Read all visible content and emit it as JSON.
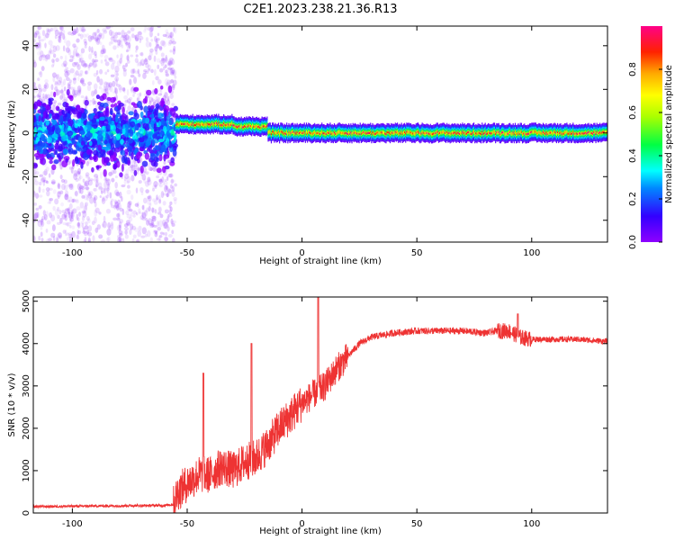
{
  "figure": {
    "title": "C2E1.2023.238.21.36.R13"
  },
  "colors": {
    "snr_line": "#ee3333",
    "axis": "#000000",
    "background": "#ffffff"
  },
  "chart_data": [
    {
      "type": "heatmap",
      "title": "",
      "xlabel": "Height of straight line (km)",
      "ylabel": "Frequency (Hz)",
      "xlim": [
        -117,
        133
      ],
      "ylim": [
        -50,
        49
      ],
      "xticks": [
        -100,
        -50,
        0,
        50,
        100
      ],
      "yticks": [
        -40,
        -20,
        0,
        20,
        40
      ],
      "colorbar": {
        "label": "Normalized spectral amplitude",
        "range": [
          0,
          1
        ],
        "ticks": [
          0.0,
          0.2,
          0.4,
          0.6,
          0.8
        ],
        "colormap": "hsv-like (purple to red)"
      },
      "features": [
        {
          "x_range": [
            -117,
            -55
          ],
          "description": "broad noisy scatter, low amplitude",
          "center_freq": 0
        },
        {
          "x_range": [
            -55,
            -30
          ],
          "center_freq": 4
        },
        {
          "x_range": [
            -30,
            -15
          ],
          "center_freq": 3
        },
        {
          "x_range": [
            -15,
            133
          ],
          "center_freq": 0
        }
      ]
    },
    {
      "type": "line",
      "title": "",
      "xlabel": "Height of straight line (km)",
      "ylabel": "SNR (10 * v/v)",
      "xlim": [
        -117,
        133
      ],
      "ylim": [
        0,
        5100
      ],
      "xticks": [
        -100,
        -50,
        0,
        50,
        100
      ],
      "yticks": [
        0,
        1000,
        2000,
        3000,
        4000,
        5000
      ],
      "series": [
        {
          "x": [
            -117,
            -100,
            -80,
            -60,
            -56,
            -54,
            -50,
            -45,
            -40,
            -35,
            -30,
            -25,
            -20,
            -15,
            -10,
            -5,
            0,
            5,
            10,
            15,
            20,
            25,
            30,
            35,
            40,
            50,
            60,
            70,
            80,
            85,
            90,
            95,
            100,
            110,
            120,
            133
          ],
          "values": [
            150,
            160,
            170,
            180,
            200,
            500,
            700,
            900,
            900,
            1100,
            1000,
            1200,
            1300,
            1600,
            2000,
            2300,
            2600,
            2800,
            3000,
            3400,
            3700,
            4000,
            4150,
            4200,
            4250,
            4300,
            4300,
            4300,
            4250,
            4300,
            4300,
            4150,
            4100,
            4100,
            4100,
            4050
          ],
          "spikes": [
            {
              "x": -43,
              "y": 3300
            },
            {
              "x": -22,
              "y": 4000
            },
            {
              "x": 7,
              "y": 5100
            },
            {
              "x": 94,
              "y": 4700
            }
          ]
        }
      ]
    }
  ]
}
